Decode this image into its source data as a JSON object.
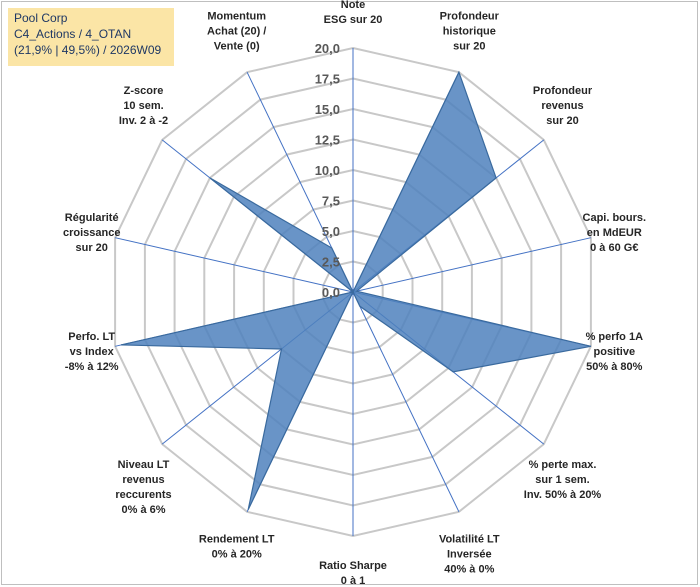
{
  "header": {
    "company": "Pool Corp",
    "portfolio": "C4_Actions / 4_OTAN",
    "stats": "(21,9% | 49,5%) / 2026W09"
  },
  "chart_data": {
    "type": "radar",
    "title": "",
    "rmin": 0,
    "rmax": 20,
    "ticks": [
      "0,0",
      "2,5",
      "5,0",
      "7,5",
      "10,0",
      "12,5",
      "15,0",
      "17,5",
      "20,0"
    ],
    "axes": [
      {
        "lines": [
          "Note",
          "ESG sur 20"
        ],
        "value": 0.0
      },
      {
        "lines": [
          "Profondeur",
          "historique",
          "sur 20"
        ],
        "value": 20.0
      },
      {
        "lines": [
          "Profondeur",
          "revenus",
          "sur 20"
        ],
        "value": 15.0
      },
      {
        "lines": [
          "Capi. bours.",
          "en MdEUR",
          "0 à 60 G€"
        ],
        "value": 0.3
      },
      {
        "lines": [
          "% perfo 1A",
          "positive",
          "50% à 80%"
        ],
        "value": 20.0
      },
      {
        "lines": [
          "% perte max.",
          "sur 1 sem.",
          "Inv. 50% à 20%"
        ],
        "value": 10.5
      },
      {
        "lines": [
          "Volatilité LT",
          "Inversée",
          "40% à 0%"
        ],
        "value": 1.3
      },
      {
        "lines": [
          "Ratio Sharpe",
          "0 à 1"
        ],
        "value": 0.0
      },
      {
        "lines": [
          "Rendement LT",
          "0% à 20%"
        ],
        "value": 19.8
      },
      {
        "lines": [
          "Niveau LT",
          "revenus",
          "reccurents",
          "0% à 6%"
        ],
        "value": 7.5
      },
      {
        "lines": [
          "Perfo. LT",
          "vs Index",
          "-8% à 12%"
        ],
        "value": 19.5
      },
      {
        "lines": [
          "Régularité",
          "croissance",
          "sur 20"
        ],
        "value": 0.0
      },
      {
        "lines": [
          "Z-score",
          "10 sem.",
          "Inv. 2 à -2"
        ],
        "value": 15.0
      },
      {
        "lines": [
          "Momentum",
          "Achat (20) /",
          "Vente (0)"
        ],
        "value": 4.0
      }
    ],
    "colors": {
      "fill": "#4f81bd",
      "stroke": "#3a6a9e",
      "grid": "#c8c8c8",
      "spoke": "#4472c4"
    }
  }
}
